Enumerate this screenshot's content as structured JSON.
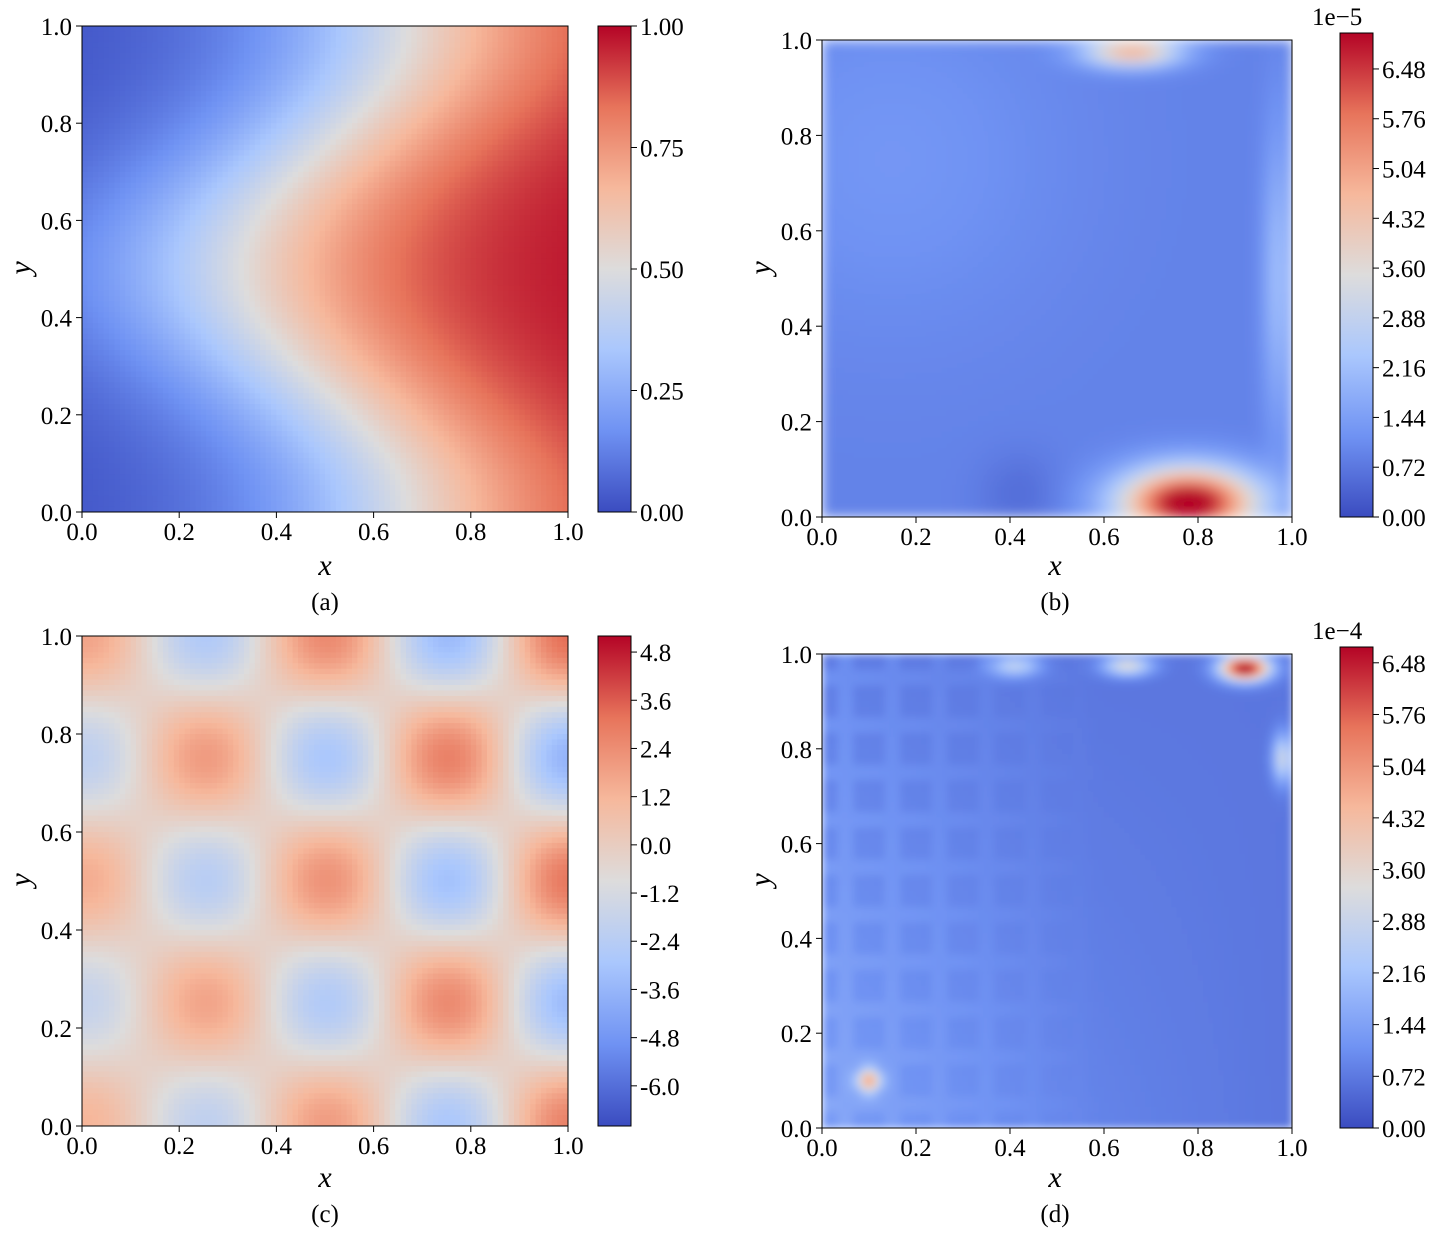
{
  "colors": {
    "cmap": [
      "#3b4cc0",
      "#6f92f3",
      "#aac7fd",
      "#dddcdc",
      "#f6b89c",
      "#e7745b",
      "#b40426"
    ]
  },
  "chart_data": [
    {
      "type": "heatmap",
      "panel": "a",
      "caption": "(a)",
      "xlabel": "x",
      "ylabel": "y",
      "xlim": [
        0.0,
        1.0
      ],
      "ylim": [
        0.0,
        1.0
      ],
      "xticks": [
        "0.0",
        "0.2",
        "0.4",
        "0.6",
        "0.8",
        "1.0"
      ],
      "yticks": [
        "0.0",
        "0.2",
        "0.4",
        "0.6",
        "0.8",
        "1.0"
      ],
      "field": "smooth field, low (blue) at left, high (red) at right, with a sinusoidal S-shaped 0.5 contour",
      "colorbar": {
        "vmin": 0.0,
        "vmax": 1.0,
        "offset_label": "",
        "ticks": [
          0.0,
          0.25,
          0.5,
          0.75,
          1.0
        ],
        "tick_labels": [
          "0.00",
          "0.25",
          "0.50",
          "0.75",
          "1.00"
        ]
      }
    },
    {
      "type": "heatmap",
      "panel": "b",
      "caption": "(b)",
      "xlabel": "x",
      "ylabel": "y",
      "xlim": [
        0.0,
        1.0
      ],
      "ylim": [
        0.0,
        1.0
      ],
      "xticks": [
        "0.0",
        "0.2",
        "0.4",
        "0.6",
        "0.8",
        "1.0"
      ],
      "yticks": [
        "0.0",
        "0.2",
        "0.4",
        "0.6",
        "0.8",
        "1.0"
      ],
      "field": "error field, mostly low, maximum near (0.78, 0.03), secondary maximum near (0.65, 0.98)",
      "colorbar": {
        "vmin": 0.0,
        "vmax": 7.0,
        "offset_label": "1e−5",
        "ticks": [
          0.0,
          0.72,
          1.44,
          2.16,
          2.88,
          3.6,
          4.32,
          5.04,
          5.76,
          6.48
        ],
        "tick_labels": [
          "0.00",
          "0.72",
          "1.44",
          "2.16",
          "2.88",
          "3.60",
          "4.32",
          "5.04",
          "5.76",
          "6.48"
        ]
      }
    },
    {
      "type": "heatmap",
      "panel": "c",
      "caption": "(c)",
      "xlabel": "x",
      "ylabel": "y",
      "xlim": [
        0.0,
        1.0
      ],
      "ylim": [
        0.0,
        1.0
      ],
      "xticks": [
        "0.0",
        "0.2",
        "0.4",
        "0.6",
        "0.8",
        "1.0"
      ],
      "yticks": [
        "0.0",
        "0.2",
        "0.4",
        "0.6",
        "0.8",
        "1.0"
      ],
      "field": "checkerboard of 4 x 5 smooth extrema",
      "colorbar": {
        "vmin": -7.0,
        "vmax": 5.2,
        "offset_label": "",
        "ticks": [
          -6.0,
          -4.8,
          -3.6,
          -2.4,
          -1.2,
          0.0,
          1.2,
          2.4,
          3.6,
          4.8
        ],
        "tick_labels": [
          "-6.0",
          "-4.8",
          "-3.6",
          "-2.4",
          "-1.2",
          "0.0",
          "1.2",
          "2.4",
          "3.6",
          "4.8"
        ]
      }
    },
    {
      "type": "heatmap",
      "panel": "d",
      "caption": "(d)",
      "xlabel": "x",
      "ylabel": "y",
      "xlim": [
        0.0,
        1.0
      ],
      "ylim": [
        0.0,
        1.0
      ],
      "xticks": [
        "0.0",
        "0.2",
        "0.4",
        "0.6",
        "0.8",
        "1.0"
      ],
      "yticks": [
        "0.0",
        "0.2",
        "0.4",
        "0.6",
        "0.8",
        "1.0"
      ],
      "field": "error field, mostly low, maximum near (0.9, 0.97), local maxima near (0.1, 0.1), (0.65, 0.98), (0.98, 0.78)",
      "colorbar": {
        "vmin": 0.0,
        "vmax": 6.7,
        "offset_label": "1e−4",
        "ticks": [
          0.0,
          0.72,
          1.44,
          2.16,
          2.88,
          3.6,
          4.32,
          5.04,
          5.76,
          6.48
        ],
        "tick_labels": [
          "0.00",
          "0.72",
          "1.44",
          "2.16",
          "2.88",
          "3.60",
          "4.32",
          "5.04",
          "5.76",
          "6.48"
        ]
      }
    }
  ]
}
